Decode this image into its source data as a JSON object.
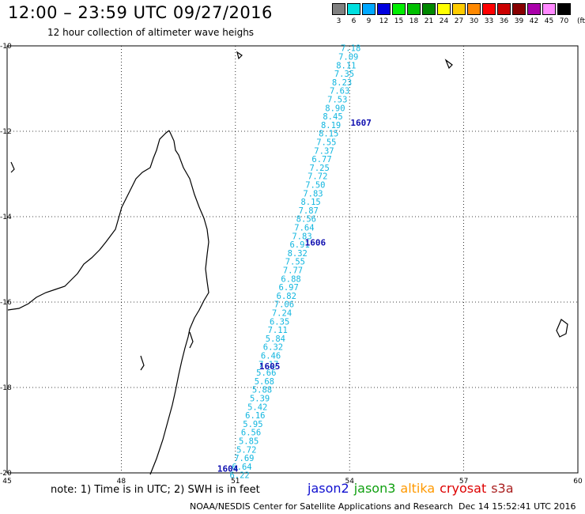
{
  "title": "12:00 – 23:59 UTC 09/27/2016",
  "subtitle": "12 hour collection of altimeter wave heighs",
  "color_scale": {
    "labels": [
      "3",
      "6",
      "9",
      "12",
      "15",
      "18",
      "21",
      "24",
      "27",
      "30",
      "33",
      "36",
      "39",
      "42",
      "45",
      "70"
    ],
    "unit": "(ft)",
    "colors": [
      "#808080",
      "#00e0e0",
      "#00a8ff",
      "#0000e0",
      "#00ee00",
      "#00c000",
      "#008800",
      "#ffff00",
      "#ffcc00",
      "#ff8800",
      "#ff0000",
      "#cc0000",
      "#880000",
      "#aa00aa",
      "#ff88ff",
      "#000000"
    ]
  },
  "map": {
    "lon_range": [
      45,
      60
    ],
    "lat_range": [
      -20,
      -10
    ],
    "lon_ticks": [
      "45",
      "48",
      "51",
      "54",
      "57",
      "60"
    ],
    "lat_ticks": [
      "-10",
      "-12",
      "-14",
      "-16",
      "-18",
      "-20"
    ]
  },
  "passes": [
    {
      "time": "1607",
      "lon": 54.3,
      "lat": -11.8
    },
    {
      "time": "1606",
      "lon": 53.1,
      "lat": -14.6
    },
    {
      "time": "1605",
      "lon": 51.9,
      "lat": -17.5
    },
    {
      "time": "1604",
      "lon": 50.8,
      "lat": -19.9
    }
  ],
  "chart_data": {
    "type": "scatter",
    "title": "12:00 – 23:59 UTC 09/27/2016",
    "subtitle": "12 hour collection of altimeter wave heighs",
    "xlim": [
      45,
      60
    ],
    "ylim": [
      -20,
      -10
    ],
    "unit": "ft",
    "track": [
      {
        "lon": 54.03,
        "lat": -10.05,
        "value": "7.18"
      },
      {
        "lon": 53.97,
        "lat": -10.25,
        "value": "7.09"
      },
      {
        "lon": 53.91,
        "lat": -10.45,
        "value": "8.11"
      },
      {
        "lon": 53.86,
        "lat": -10.65,
        "value": "7.35"
      },
      {
        "lon": 53.8,
        "lat": -10.85,
        "value": "8.23"
      },
      {
        "lon": 53.74,
        "lat": -11.05,
        "value": "7.63"
      },
      {
        "lon": 53.68,
        "lat": -11.25,
        "value": "7.53"
      },
      {
        "lon": 53.62,
        "lat": -11.45,
        "value": "8.90"
      },
      {
        "lon": 53.56,
        "lat": -11.65,
        "value": "8.45"
      },
      {
        "lon": 53.51,
        "lat": -11.85,
        "value": "8.19"
      },
      {
        "lon": 53.45,
        "lat": -12.05,
        "value": "8.15"
      },
      {
        "lon": 53.39,
        "lat": -12.25,
        "value": "7.55"
      },
      {
        "lon": 53.33,
        "lat": -12.45,
        "value": "7.37"
      },
      {
        "lon": 53.27,
        "lat": -12.65,
        "value": "6.77"
      },
      {
        "lon": 53.21,
        "lat": -12.85,
        "value": "7.25"
      },
      {
        "lon": 53.16,
        "lat": -13.05,
        "value": "7.72"
      },
      {
        "lon": 53.1,
        "lat": -13.25,
        "value": "7.50"
      },
      {
        "lon": 53.04,
        "lat": -13.45,
        "value": "7.83"
      },
      {
        "lon": 52.98,
        "lat": -13.65,
        "value": "8.15"
      },
      {
        "lon": 52.92,
        "lat": -13.85,
        "value": "7.87"
      },
      {
        "lon": 52.86,
        "lat": -14.05,
        "value": "8.56"
      },
      {
        "lon": 52.81,
        "lat": -14.25,
        "value": "7.64"
      },
      {
        "lon": 52.75,
        "lat": -14.45,
        "value": "7.83"
      },
      {
        "lon": 52.69,
        "lat": -14.65,
        "value": "6.91"
      },
      {
        "lon": 52.63,
        "lat": -14.85,
        "value": "8.32"
      },
      {
        "lon": 52.57,
        "lat": -15.05,
        "value": "7.55"
      },
      {
        "lon": 52.51,
        "lat": -15.25,
        "value": "7.77"
      },
      {
        "lon": 52.46,
        "lat": -15.45,
        "value": "6.88"
      },
      {
        "lon": 52.4,
        "lat": -15.65,
        "value": "6.97"
      },
      {
        "lon": 52.34,
        "lat": -15.85,
        "value": "6.82"
      },
      {
        "lon": 52.28,
        "lat": -16.05,
        "value": "7.06"
      },
      {
        "lon": 52.22,
        "lat": -16.25,
        "value": "7.24"
      },
      {
        "lon": 52.16,
        "lat": -16.45,
        "value": "6.35"
      },
      {
        "lon": 52.11,
        "lat": -16.65,
        "value": "7.11"
      },
      {
        "lon": 52.05,
        "lat": -16.85,
        "value": "5.84"
      },
      {
        "lon": 51.99,
        "lat": -17.05,
        "value": "6.32"
      },
      {
        "lon": 51.93,
        "lat": -17.25,
        "value": "6.46"
      },
      {
        "lon": 51.87,
        "lat": -17.45,
        "value": "7.17"
      },
      {
        "lon": 51.81,
        "lat": -17.65,
        "value": "5.66"
      },
      {
        "lon": 51.76,
        "lat": -17.85,
        "value": "5.68"
      },
      {
        "lon": 51.7,
        "lat": -18.05,
        "value": "5.88"
      },
      {
        "lon": 51.64,
        "lat": -18.25,
        "value": "5.39"
      },
      {
        "lon": 51.58,
        "lat": -18.45,
        "value": "5.42"
      },
      {
        "lon": 51.52,
        "lat": -18.65,
        "value": "6.16"
      },
      {
        "lon": 51.46,
        "lat": -18.85,
        "value": "5.95"
      },
      {
        "lon": 51.41,
        "lat": -19.05,
        "value": "6.56"
      },
      {
        "lon": 51.35,
        "lat": -19.25,
        "value": "5.85"
      },
      {
        "lon": 51.29,
        "lat": -19.45,
        "value": "5.72"
      },
      {
        "lon": 51.23,
        "lat": -19.65,
        "value": "7.69"
      },
      {
        "lon": 51.17,
        "lat": -19.85,
        "value": "6.64"
      },
      {
        "lon": 51.11,
        "lat": -20.05,
        "value": "6.22"
      }
    ]
  },
  "note": "note: 1) Time is in UTC; 2) SWH is in feet",
  "legend": [
    {
      "label": "jason2",
      "color": "#1010d0"
    },
    {
      "label": "jason3",
      "color": "#10a010"
    },
    {
      "label": "altika",
      "color": "#ff9900"
    },
    {
      "label": "cryosat",
      "color": "#dd0000"
    },
    {
      "label": "s3a",
      "color": "#aa2020"
    }
  ],
  "credit": "NOAA/NESDIS Center for Satellite Applications and Research",
  "timestamp": "Dec 14 15:52:41 UTC 2016"
}
